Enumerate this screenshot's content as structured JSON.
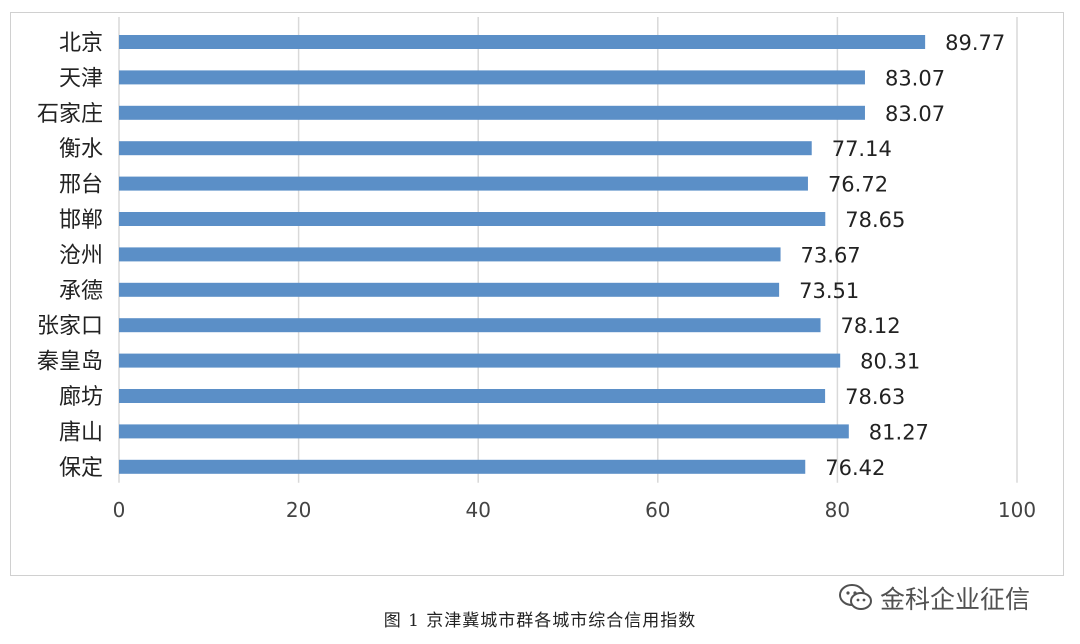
{
  "chart_data": {
    "type": "bar",
    "orientation": "horizontal",
    "categories": [
      "北京",
      "天津",
      "石家庄",
      "衡水",
      "邢台",
      "邯郸",
      "沧州",
      "承德",
      "张家口",
      "秦皇岛",
      "廊坊",
      "唐山",
      "保定"
    ],
    "values": [
      89.77,
      83.07,
      83.07,
      77.14,
      76.72,
      78.65,
      73.67,
      73.51,
      78.12,
      80.31,
      78.63,
      81.27,
      76.42
    ],
    "value_labels": [
      "89.77",
      "83.07",
      "83.07",
      "77.14",
      "76.72",
      "78.65",
      "73.67",
      "73.51",
      "78.12",
      "80.31",
      "78.63",
      "81.27",
      "76.42"
    ],
    "xlim": [
      0,
      100
    ],
    "x_ticks": [
      0,
      20,
      40,
      60,
      80,
      100
    ],
    "grid": "vertical",
    "bar_color": "#5b8fc7",
    "title": ""
  },
  "caption": "图 1 京津冀城市群各城市综合信用指数",
  "watermark": "金科企业征信"
}
